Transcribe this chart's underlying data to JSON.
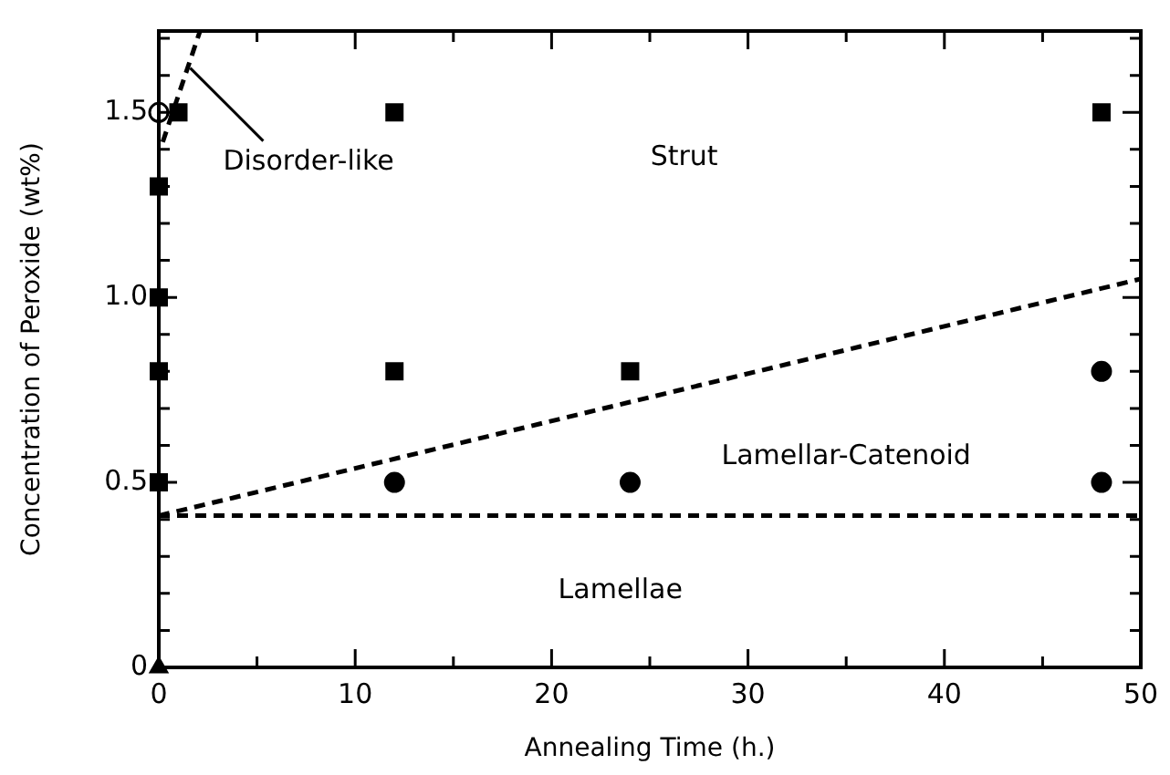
{
  "chart_data": {
    "type": "scatter",
    "xlabel": "Annealing Time (h.)",
    "ylabel": "Concentration of Peroxide (wt%)",
    "xlim": [
      0,
      50
    ],
    "ylim": [
      0,
      1.72
    ],
    "xticks": [
      0,
      {
        "value": 5,
        "label": null
      },
      10,
      {
        "value": 15,
        "label": null
      },
      20,
      {
        "value": 25,
        "label": null
      },
      30,
      {
        "value": 35,
        "label": null
      },
      40,
      {
        "value": 45,
        "label": null
      },
      50
    ],
    "yticks": [
      0,
      {
        "value": 0.1,
        "label": null
      },
      {
        "value": 0.2,
        "label": null
      },
      {
        "value": 0.3,
        "label": null
      },
      {
        "value": 0.4,
        "label": null
      },
      0.5,
      {
        "value": 0.6,
        "label": null
      },
      {
        "value": 0.7,
        "label": null
      },
      {
        "value": 0.8,
        "label": null
      },
      {
        "value": 0.9,
        "label": null
      },
      {
        "value": 1,
        "label": "1.0"
      },
      {
        "value": 1.1,
        "label": null
      },
      {
        "value": 1.2,
        "label": null
      },
      {
        "value": 1.3,
        "label": null
      },
      {
        "value": 1.4,
        "label": null
      },
      1.5,
      {
        "value": 1.6,
        "label": null
      },
      {
        "value": 1.7,
        "label": null
      }
    ],
    "grid": false,
    "legend": false,
    "series": [
      {
        "type": "scatter",
        "marker": "square",
        "color": "#000000",
        "x": [
          0,
          0,
          0,
          0,
          1,
          12,
          12,
          24,
          48
        ],
        "values": [
          0.5,
          0.8,
          1.0,
          1.3,
          1.5,
          0.8,
          1.5,
          0.8,
          1.5
        ]
      },
      {
        "type": "scatter",
        "marker": "circle",
        "color": "#000000",
        "x": [
          12,
          24,
          48,
          48
        ],
        "values": [
          0.5,
          0.5,
          0.5,
          0.8
        ]
      },
      {
        "type": "scatter",
        "marker": "circle",
        "color": "#ffffff",
        "x": [
          0
        ],
        "values": [
          1.5
        ]
      },
      {
        "type": "scatter",
        "marker": "triangle",
        "color": "#000000",
        "x": [
          0
        ],
        "values": [
          0
        ]
      },
      {
        "type": "line",
        "marker": "none",
        "line_style": "dashed",
        "color": "#000000",
        "x": [
          0,
          50
        ],
        "values": [
          0.41,
          0.41
        ]
      },
      {
        "type": "line",
        "marker": "none",
        "line_style": "dashed",
        "color": "#000000",
        "x": [
          0,
          50
        ],
        "values": [
          0.41,
          1.05
        ]
      },
      {
        "type": "line",
        "marker": "none",
        "line_style": "dashed",
        "color": "#000000",
        "x": [
          0.2,
          2.1
        ],
        "values": [
          1.42,
          1.72
        ]
      }
    ],
    "annotations": [
      {
        "text": "Disorder-like",
        "x": 1.6,
        "y": 1.62
      },
      "Strut",
      "Lamellar-Catenoid",
      "Lamellae"
    ]
  }
}
